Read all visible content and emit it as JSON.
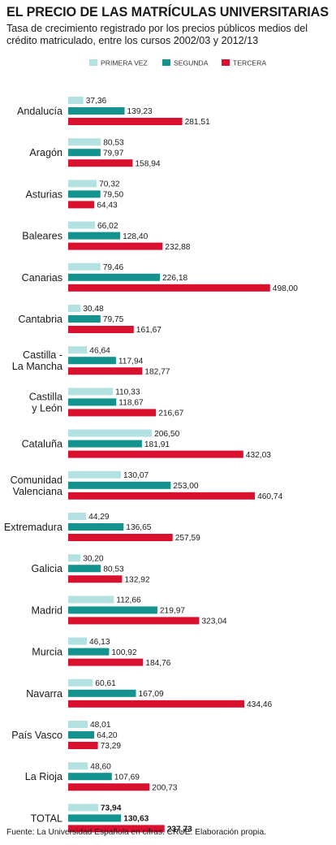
{
  "chart_data": {
    "type": "bar",
    "orientation": "horizontal",
    "title": "EL PRECIO DE LAS MATRÍCULAS UNIVERSITARIAS",
    "subtitle": "Tasa de crecimiento registrado por los precios públicos medios del crédito matriculado, entre los cursos 2002/03 y 2012/13",
    "source": "Fuente: La Universidad Española en cifras. CRUE. Elaboración propia.",
    "legend_position": "top",
    "grid": false,
    "xlim": [
      0,
      540
    ],
    "categories": [
      [
        "Andalucía"
      ],
      [
        "Aragón"
      ],
      [
        "Asturias"
      ],
      [
        "Baleares"
      ],
      [
        "Canarias"
      ],
      [
        "Cantabria"
      ],
      [
        "Castilla -",
        "La Mancha"
      ],
      [
        "Castilla",
        "y León"
      ],
      [
        "Cataluña"
      ],
      [
        "Comunidad",
        "Valenciana"
      ],
      [
        "Extremadura"
      ],
      [
        "Galicia"
      ],
      [
        "Madrid"
      ],
      [
        "Murcia"
      ],
      [
        "Navarra"
      ],
      [
        "País Vasco"
      ],
      [
        "La Rioja"
      ],
      [
        "TOTAL"
      ]
    ],
    "emphasized_category": "TOTAL",
    "series": [
      {
        "name": "PRIMERA VEZ",
        "color": "#b4e2e2",
        "values": [
          37.36,
          80.53,
          70.32,
          66.02,
          79.46,
          30.48,
          46.64,
          110.33,
          206.5,
          130.07,
          44.29,
          30.2,
          112.66,
          46.13,
          60.61,
          48.01,
          48.6,
          73.94
        ]
      },
      {
        "name": "SEGUNDA",
        "color": "#13928e",
        "values": [
          139.23,
          79.97,
          79.5,
          128.4,
          226.18,
          79.75,
          117.94,
          118.67,
          181.91,
          253.0,
          136.65,
          80.53,
          219.97,
          100.92,
          167.09,
          64.2,
          107.69,
          130.63
        ]
      },
      {
        "name": "TERCERA",
        "color": "#d9102e",
        "values": [
          281.51,
          158.94,
          64.43,
          232.88,
          498.0,
          161.67,
          182.77,
          216.67,
          432.03,
          460.74,
          257.59,
          132.92,
          323.04,
          184.76,
          434.46,
          73.29,
          200.73,
          237.73
        ]
      }
    ]
  }
}
